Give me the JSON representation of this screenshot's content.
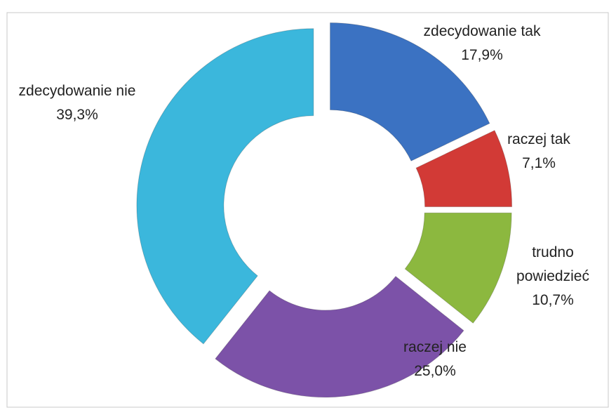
{
  "chart_data": {
    "type": "donut",
    "categories": [
      "zdecydowanie tak",
      "raczej tak",
      "trudno powiedzieć",
      "raczej nie",
      "zdecydowanie nie"
    ],
    "values": [
      17.9,
      7.1,
      10.7,
      25.0,
      39.3
    ],
    "value_labels": [
      "17,9%",
      "7,1%",
      "10,7%",
      "25,0%",
      "39,3%"
    ],
    "colors": [
      "#3b72c2",
      "#d23a36",
      "#8cb83f",
      "#7c52a8",
      "#3bb7dc"
    ]
  }
}
